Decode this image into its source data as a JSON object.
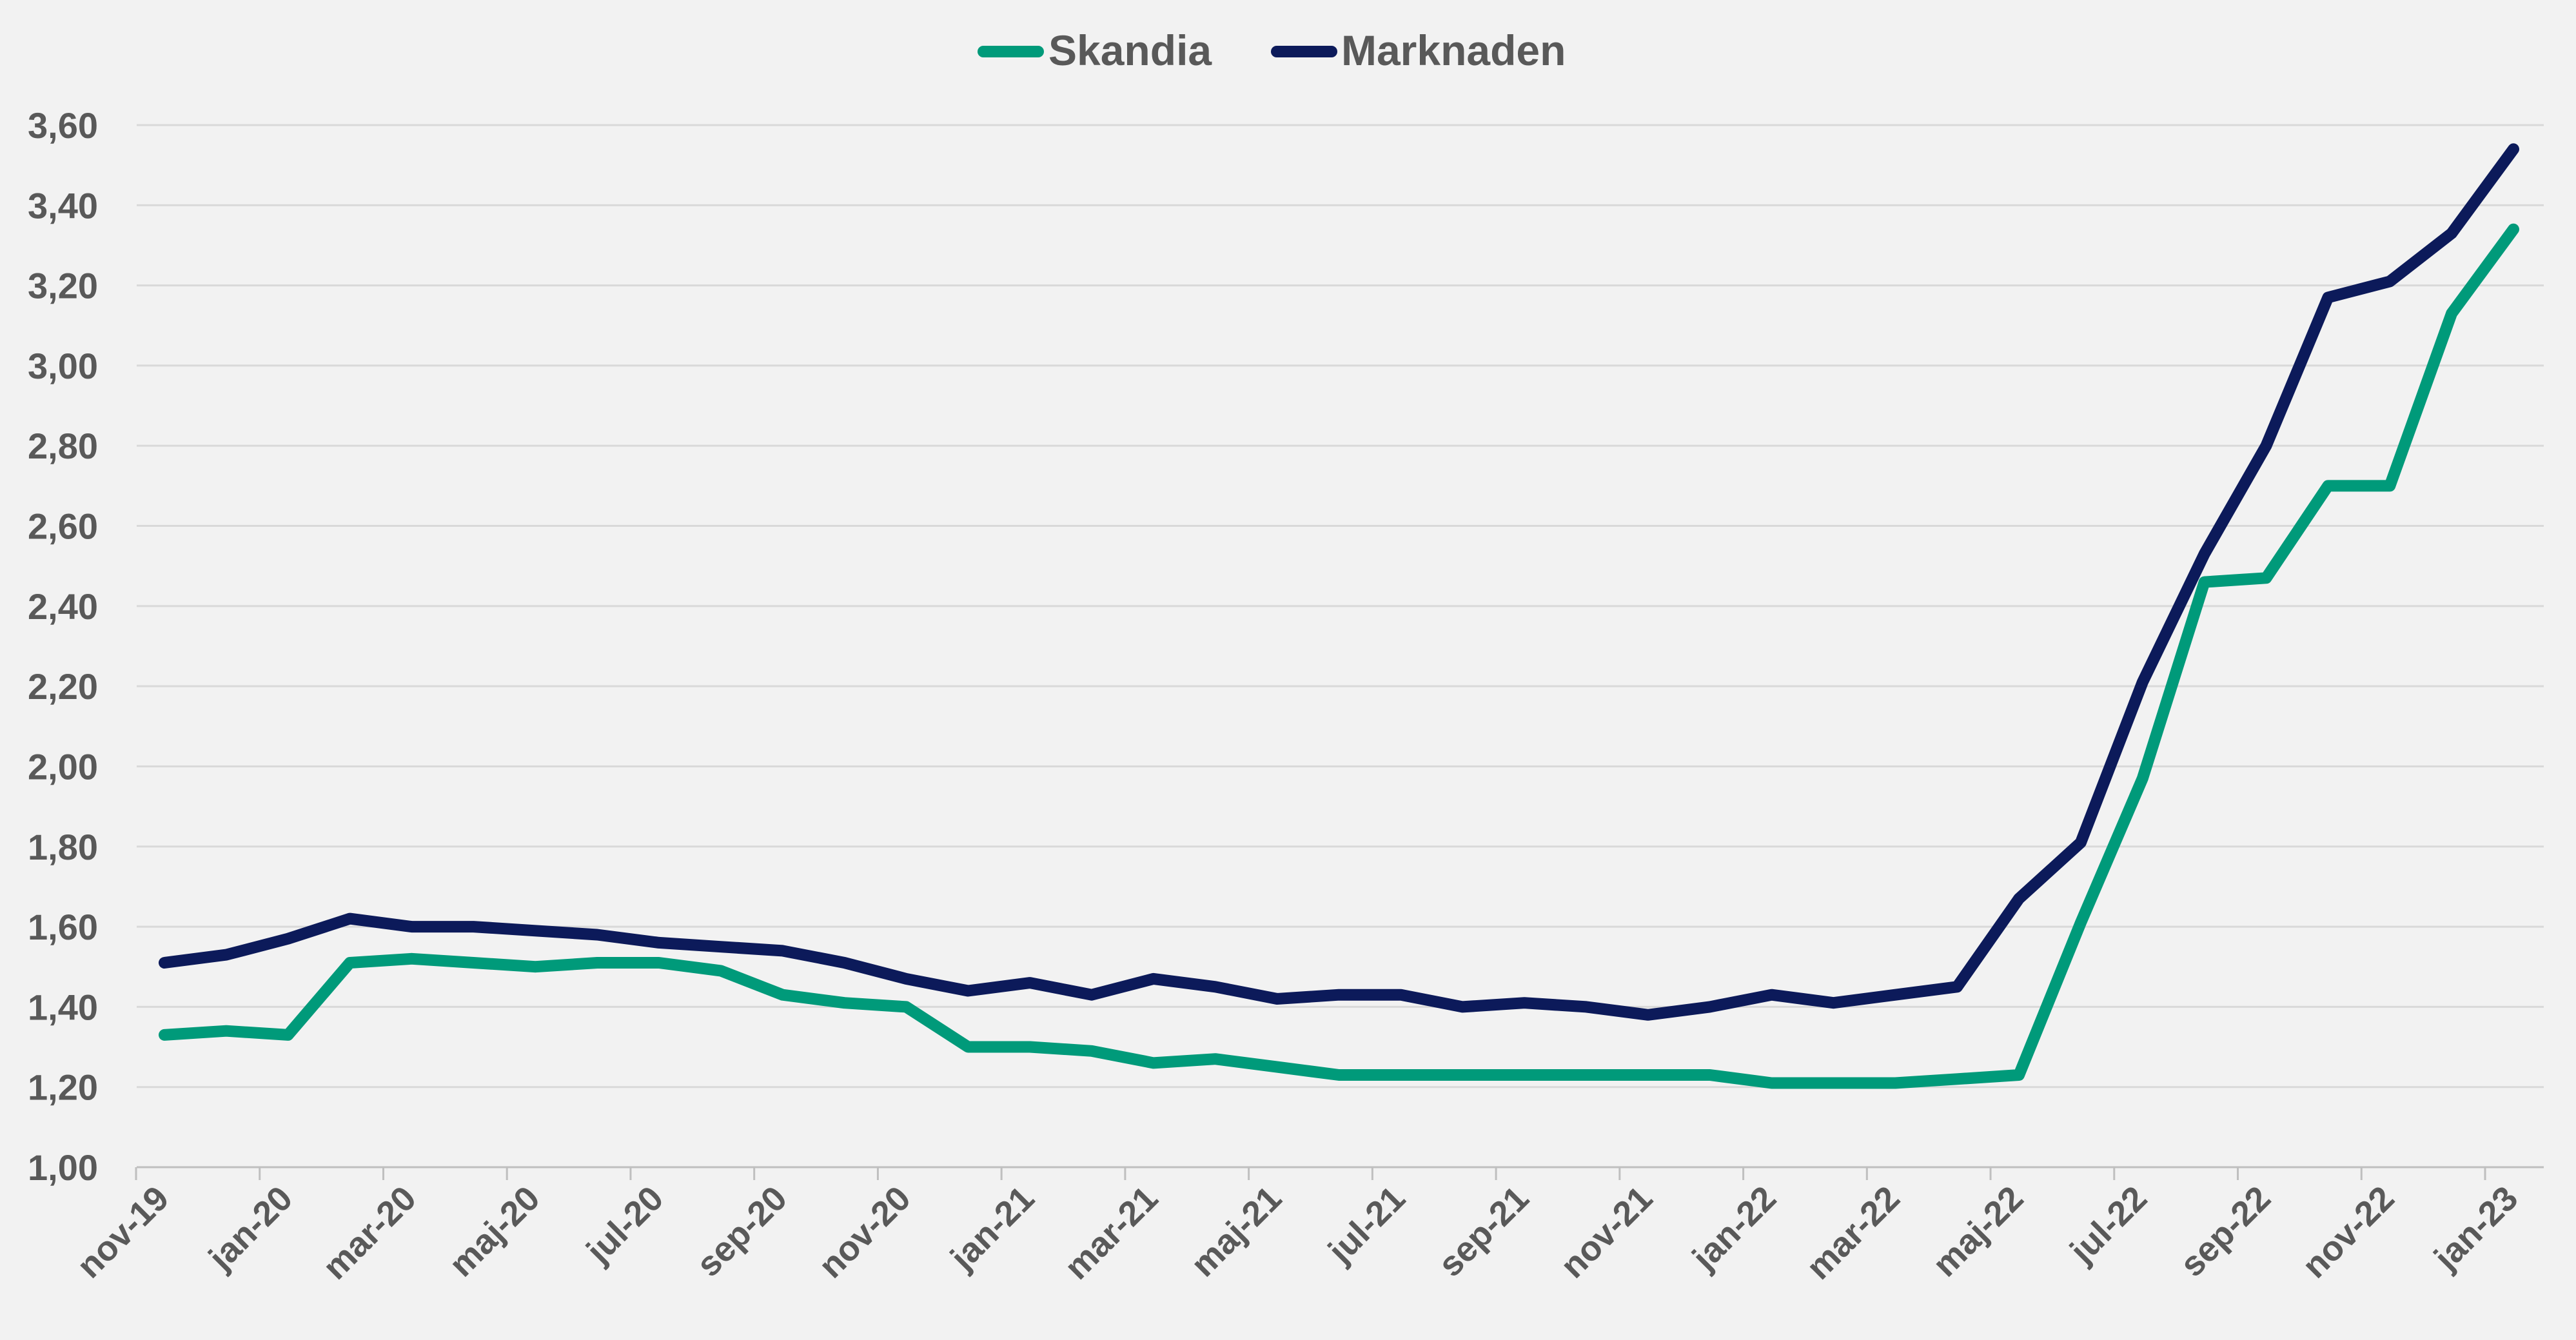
{
  "chart_data": {
    "type": "line",
    "x": [
      "nov-19",
      "dec-19",
      "jan-20",
      "feb-20",
      "mar-20",
      "apr-20",
      "maj-20",
      "jun-20",
      "jul-20",
      "aug-20",
      "sep-20",
      "okt-20",
      "nov-20",
      "dec-20",
      "jan-21",
      "feb-21",
      "mar-21",
      "apr-21",
      "maj-21",
      "jun-21",
      "jul-21",
      "aug-21",
      "sep-21",
      "okt-21",
      "nov-21",
      "dec-21",
      "jan-22",
      "feb-22",
      "mar-22",
      "apr-22",
      "maj-22",
      "jun-22",
      "jul-22",
      "aug-22",
      "sep-22",
      "okt-22",
      "nov-22",
      "dec-22",
      "jan-23"
    ],
    "xtick_labels": [
      "nov-19",
      "jan-20",
      "mar-20",
      "maj-20",
      "jul-20",
      "sep-20",
      "nov-20",
      "jan-21",
      "mar-21",
      "maj-21",
      "jul-21",
      "sep-21",
      "nov-21",
      "jan-22",
      "mar-22",
      "maj-22",
      "jul-22",
      "sep-22",
      "nov-22",
      "jan-23"
    ],
    "ytick_labels": [
      "1,00",
      "1,20",
      "1,40",
      "1,60",
      "1,80",
      "2,00",
      "2,20",
      "2,40",
      "2,60",
      "2,80",
      "3,00",
      "3,20",
      "3,40",
      "3,60"
    ],
    "ylim": [
      1.0,
      3.6
    ],
    "grid": "horizontal",
    "legend_position": "top-center",
    "series": [
      {
        "name": "Skandia",
        "color": "#009a7a",
        "values": [
          1.33,
          1.34,
          1.33,
          1.51,
          1.52,
          1.51,
          1.5,
          1.51,
          1.51,
          1.49,
          1.43,
          1.41,
          1.4,
          1.3,
          1.3,
          1.29,
          1.26,
          1.27,
          1.25,
          1.23,
          1.23,
          1.23,
          1.23,
          1.23,
          1.23,
          1.23,
          1.21,
          1.21,
          1.21,
          1.22,
          1.23,
          1.61,
          1.97,
          2.46,
          2.47,
          2.7,
          2.7,
          3.13,
          3.34
        ]
      },
      {
        "name": "Marknaden",
        "color": "#0c1a5a",
        "values": [
          1.51,
          1.53,
          1.57,
          1.62,
          1.6,
          1.6,
          1.59,
          1.58,
          1.56,
          1.55,
          1.54,
          1.51,
          1.47,
          1.44,
          1.46,
          1.43,
          1.47,
          1.45,
          1.42,
          1.43,
          1.43,
          1.4,
          1.41,
          1.4,
          1.38,
          1.4,
          1.43,
          1.41,
          1.43,
          1.45,
          1.67,
          1.81,
          2.21,
          2.53,
          2.8,
          3.17,
          3.21,
          3.33,
          3.54
        ]
      }
    ]
  }
}
